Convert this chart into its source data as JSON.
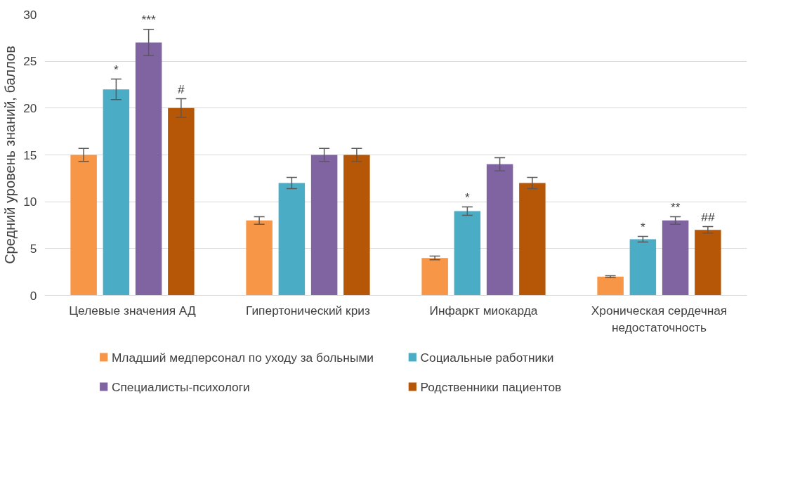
{
  "chart_data": {
    "type": "bar",
    "ylabel": "Средний уровень знаний, баллов",
    "categories": [
      "Целевые значения АД",
      "Гипертонический криз",
      "Инфаркт миокарда",
      "Хроническая сердечная недостаточность"
    ],
    "series": [
      {
        "name": "Младший медперсонал по уходу за больными",
        "color": "#f79646",
        "values": [
          15,
          8,
          4,
          2
        ],
        "errors": [
          0.7,
          0.4,
          0.2,
          0.1
        ]
      },
      {
        "name": "Социальные работники",
        "color": "#4bacc6",
        "values": [
          22,
          12,
          9,
          6
        ],
        "errors": [
          1.1,
          0.6,
          0.45,
          0.3
        ],
        "value_labels": [
          "*",
          null,
          "*",
          "*"
        ]
      },
      {
        "name": "Специалисты-психологи",
        "color": "#8064a2",
        "values": [
          27,
          15,
          14,
          8
        ],
        "errors": [
          1.4,
          0.7,
          0.7,
          0.4
        ],
        "value_labels": [
          "***",
          null,
          null,
          "**"
        ]
      },
      {
        "name": "Родственники пациентов",
        "color": "#b65708",
        "values": [
          20,
          15,
          12,
          7
        ],
        "errors": [
          1.0,
          0.7,
          0.6,
          0.35
        ],
        "value_labels": [
          "#",
          null,
          null,
          "##"
        ]
      }
    ],
    "ylim": [
      0,
      30
    ],
    "yticks": [
      0,
      5,
      10,
      15,
      20,
      25,
      30
    ],
    "grid": "y",
    "legend": "bottom"
  }
}
